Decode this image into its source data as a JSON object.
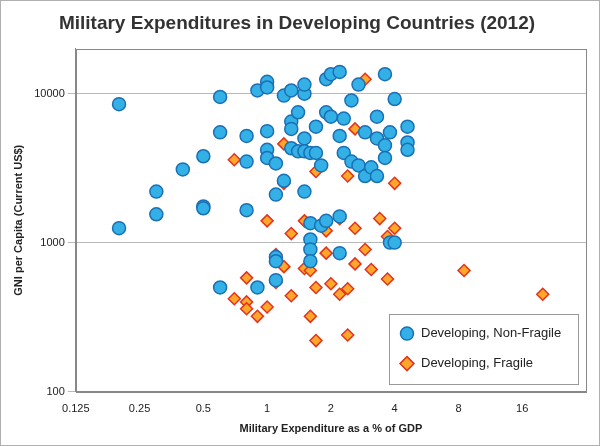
{
  "chart_data": {
    "type": "scatter",
    "title": "Military Expenditures in Developing Countries (2012)",
    "x_label": "Military Expenditure as a % of GDP",
    "y_label": "GNI per Capita (Current US$)",
    "log": true,
    "grid": "y",
    "legend": "lower right",
    "xlim": [
      0.125,
      32
    ],
    "xticks": [
      0.125,
      0.25,
      0.5,
      1,
      2,
      4,
      8,
      16
    ],
    "ylim": [
      100,
      20000
    ],
    "yticks": [
      100,
      1000,
      10000
    ],
    "series": [
      {
        "name": "Developing, Non-Fragile",
        "color": "#33b0e6",
        "marker": "circle",
        "x": [
          0.2,
          0.2,
          0.3,
          0.3,
          0.4,
          0.5,
          0.5,
          0.5,
          0.6,
          0.6,
          0.6,
          0.8,
          0.8,
          0.8,
          0.9,
          0.9,
          1.0,
          1.0,
          1.0,
          1.0,
          1.0,
          1.1,
          1.1,
          1.1,
          1.1,
          1.1,
          1.2,
          1.2,
          1.3,
          1.3,
          1.3,
          1.3,
          1.4,
          1.4,
          1.5,
          1.5,
          1.5,
          1.5,
          1.5,
          1.6,
          1.6,
          1.6,
          1.6,
          1.6,
          1.7,
          1.7,
          1.8,
          1.8,
          1.9,
          1.9,
          1.9,
          2.0,
          2.0,
          2.2,
          2.2,
          2.2,
          2.2,
          2.3,
          2.3,
          2.5,
          2.5,
          2.7,
          2.7,
          2.9,
          2.9,
          3.1,
          3.3,
          3.3,
          3.3,
          3.6,
          3.6,
          3.6,
          3.8,
          3.8,
          4.0,
          4.0,
          4.6,
          4.6,
          4.6
        ],
        "values": [
          8500,
          1250,
          2200,
          1550,
          3100,
          3800,
          1750,
          1700,
          9500,
          5500,
          500,
          5200,
          3500,
          1650,
          10500,
          500,
          12000,
          11000,
          5600,
          4200,
          3700,
          3400,
          2100,
          800,
          750,
          560,
          9700,
          2600,
          10500,
          6500,
          5800,
          4300,
          4100,
          7500,
          10000,
          11500,
          5000,
          2200,
          4100,
          4000,
          1350,
          1050,
          900,
          750,
          6000,
          4000,
          3300,
          1300,
          12500,
          7500,
          1400,
          13500,
          7000,
          14000,
          5200,
          850,
          1500,
          6800,
          4000,
          9000,
          3500,
          3300,
          11500,
          5500,
          2800,
          3200,
          7000,
          5000,
          2800,
          13500,
          4500,
          3700,
          5500,
          1000,
          9200,
          1000,
          6000,
          4700,
          4200
        ]
      },
      {
        "name": "Developing, Fragile",
        "color": "#e3321e",
        "marker": "diamond",
        "x": [
          0.7,
          0.7,
          0.8,
          0.8,
          0.8,
          0.9,
          1.0,
          1.0,
          1.1,
          1.1,
          1.2,
          1.2,
          1.2,
          1.3,
          1.3,
          1.5,
          1.5,
          1.6,
          1.6,
          1.7,
          1.7,
          1.7,
          1.9,
          1.9,
          2.0,
          2.2,
          2.2,
          2.4,
          2.4,
          2.4,
          2.6,
          2.6,
          2.6,
          2.9,
          2.9,
          3.1,
          3.4,
          3.7,
          3.7,
          4.0,
          4.0,
          8.5,
          20
        ],
        "values": [
          3600,
          420,
          580,
          400,
          360,
          320,
          1400,
          370,
          830,
          540,
          4600,
          2500,
          690,
          1150,
          440,
          1400,
          670,
          650,
          320,
          3000,
          500,
          220,
          1200,
          850,
          530,
          1450,
          450,
          2800,
          490,
          240,
          5800,
          1250,
          720,
          12500,
          900,
          660,
          1450,
          1100,
          570,
          2500,
          1250,
          650,
          450
        ]
      }
    ]
  }
}
